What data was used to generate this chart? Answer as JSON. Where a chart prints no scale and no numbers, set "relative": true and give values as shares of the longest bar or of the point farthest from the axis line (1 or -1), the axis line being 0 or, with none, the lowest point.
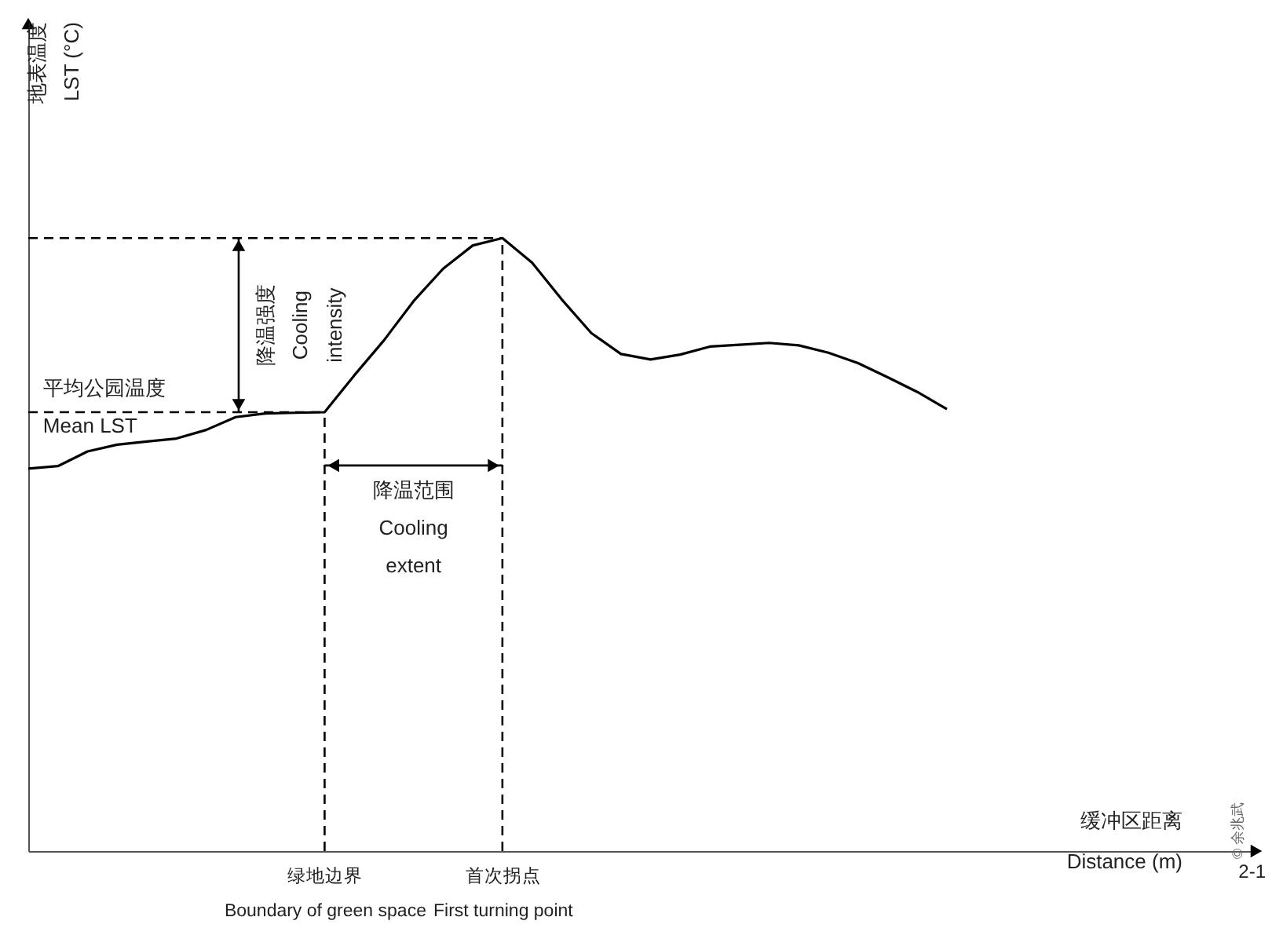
{
  "chart_data": {
    "type": "line",
    "relative": true,
    "tick_labels": "x",
    "line_style": "solid",
    "categories": [
      null,
      null,
      null,
      null,
      null,
      null,
      null,
      null,
      null,
      null,
      "绿地边界\nBoundary of green space",
      null,
      null,
      null,
      null,
      null,
      "首次拐点\nFirst turning point",
      null,
      null,
      null,
      null,
      null,
      null,
      null,
      null,
      null,
      null,
      null,
      null,
      null,
      null,
      null
    ],
    "series": [
      {
        "color": "#000000",
        "values": [
          0.624,
          0.628,
          0.652,
          0.663,
          0.668,
          0.673,
          0.687,
          0.708,
          0.714,
          0.715,
          0.716,
          0.776,
          0.833,
          0.897,
          0.95,
          0.988,
          1,
          0.96,
          0.9,
          0.845,
          0.811,
          0.802,
          0.81,
          0.823,
          0.826,
          0.829,
          0.825,
          0.813,
          0.796,
          0.773,
          0.749,
          0.721
        ]
      }
    ],
    "ref_lines": [
      {
        "axis": "y",
        "value": 0.716,
        "label": "平均公园温度\nMean LST",
        "line_style": "dashed"
      },
      {
        "axis": "y",
        "value": 1,
        "line_style": "dashed"
      },
      {
        "axis": "x",
        "value": "绿地边界\nBoundary of green space",
        "line_style": "dashed"
      },
      {
        "axis": "x",
        "value": "首次拐点\nFirst turning point",
        "line_style": "dashed"
      }
    ],
    "annotations": [
      "地表温度\nLST (°C)",
      "缓冲区距离\nDistance (m)",
      "降温强度\nCooling\nintensity",
      "降温范围\nCooling\nextent",
      "© 余兆武",
      "2-1"
    ]
  }
}
